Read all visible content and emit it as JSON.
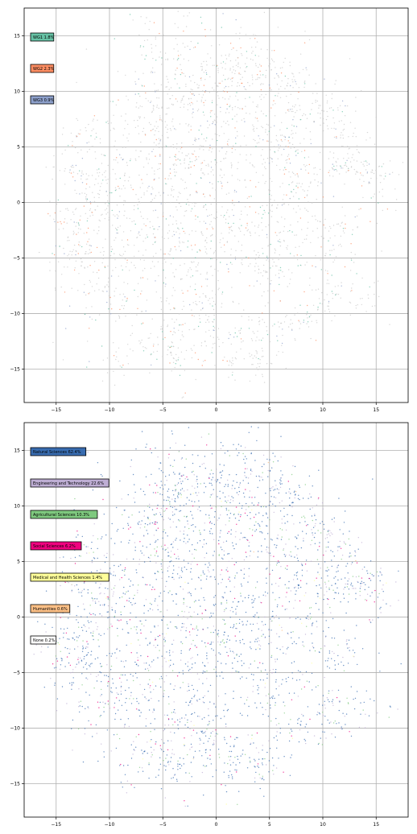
{
  "chart_data": [
    {
      "type": "scatter",
      "title": "",
      "xlabel": "",
      "ylabel": "",
      "xlim": [
        -18,
        18
      ],
      "ylim": [
        -18,
        17.5
      ],
      "xticks": [
        "−15",
        "−10",
        "−5",
        "0",
        "5",
        "10",
        "15"
      ],
      "yticks": [
        "15",
        "10",
        "5",
        "0",
        "−5",
        "−10",
        "−15"
      ],
      "grid": true,
      "legend": "top-left, stacked boxes",
      "background_color": "#c9c9c9",
      "series": [
        {
          "name": "WG1 1.8%",
          "color": "#66c2a5",
          "share_percent": 1.8
        },
        {
          "name": "WG2 2.3%",
          "color": "#fc8d62",
          "share_percent": 2.3
        },
        {
          "name": "WG3 0.9%",
          "color": "#8da0cb",
          "share_percent": 0.9
        }
      ]
    },
    {
      "type": "scatter",
      "title": "",
      "xlabel": "",
      "ylabel": "",
      "xlim": [
        -18,
        18
      ],
      "ylim": [
        -18,
        17.5
      ],
      "xticks": [
        "−15",
        "−10",
        "−5",
        "0",
        "5",
        "10",
        "15"
      ],
      "yticks": [
        "15",
        "10",
        "5",
        "0",
        "−5",
        "−10",
        "−15"
      ],
      "grid": true,
      "legend": "top-left, stacked boxes",
      "series": [
        {
          "name": "Natural Sciences 62.4%",
          "color": "#386cb0",
          "share_percent": 62.4
        },
        {
          "name": "Engineering and Technology 22.6%",
          "color": "#beaed4",
          "share_percent": 22.6
        },
        {
          "name": "Agricultural Sciences 10.3%",
          "color": "#7fc97f",
          "share_percent": 10.3
        },
        {
          "name": "Social Sciences 6.2%",
          "color": "#f0027f",
          "share_percent": 6.2
        },
        {
          "name": "Medical and Health Sciences 1.4%",
          "color": "#ffff99",
          "share_percent": 1.4
        },
        {
          "name": "Humanities 0.6%",
          "color": "#fdc086",
          "share_percent": 0.6
        },
        {
          "name": "None 0.2%",
          "color": "#ffffff",
          "share_percent": 0.2
        }
      ]
    }
  ]
}
